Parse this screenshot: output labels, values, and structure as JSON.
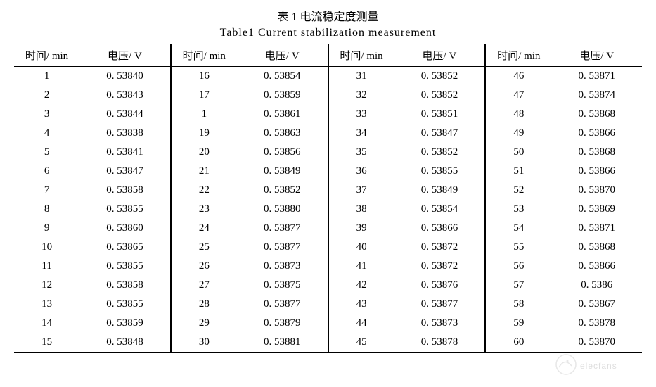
{
  "title_zh": "表 1   电流稳定度测量",
  "title_en": "Table1   Current stabilization measurement",
  "header_time": "时间/ min",
  "header_volt": "电压/ V",
  "colors": {
    "text": "#000000",
    "background": "#ffffff",
    "border": "#000000",
    "watermark": "#888888"
  },
  "blocks": [
    {
      "rows": [
        {
          "t": "1",
          "v": "0. 53840"
        },
        {
          "t": "2",
          "v": "0. 53843"
        },
        {
          "t": "3",
          "v": "0. 53844"
        },
        {
          "t": "4",
          "v": "0. 53838"
        },
        {
          "t": "5",
          "v": "0. 53841"
        },
        {
          "t": "6",
          "v": "0. 53847"
        },
        {
          "t": "7",
          "v": "0. 53858"
        },
        {
          "t": "8",
          "v": "0. 53855"
        },
        {
          "t": "9",
          "v": "0. 53860"
        },
        {
          "t": "10",
          "v": "0. 53865"
        },
        {
          "t": "11",
          "v": "0. 53855"
        },
        {
          "t": "12",
          "v": "0. 53858"
        },
        {
          "t": "13",
          "v": "0. 53855"
        },
        {
          "t": "14",
          "v": "0. 53859"
        },
        {
          "t": "15",
          "v": "0. 53848"
        }
      ]
    },
    {
      "rows": [
        {
          "t": "16",
          "v": "0. 53854"
        },
        {
          "t": "17",
          "v": "0. 53859"
        },
        {
          "t": "1",
          "v": "0. 53861"
        },
        {
          "t": "19",
          "v": "0. 53863"
        },
        {
          "t": "20",
          "v": "0. 53856"
        },
        {
          "t": "21",
          "v": "0. 53849"
        },
        {
          "t": "22",
          "v": "0. 53852"
        },
        {
          "t": "23",
          "v": "0. 53880"
        },
        {
          "t": "24",
          "v": "0. 53877"
        },
        {
          "t": "25",
          "v": "0. 53877"
        },
        {
          "t": "26",
          "v": "0. 53873"
        },
        {
          "t": "27",
          "v": "0. 53875"
        },
        {
          "t": "28",
          "v": "0. 53877"
        },
        {
          "t": "29",
          "v": "0. 53879"
        },
        {
          "t": "30",
          "v": "0. 53881"
        }
      ]
    },
    {
      "rows": [
        {
          "t": "31",
          "v": "0. 53852"
        },
        {
          "t": "32",
          "v": "0. 53852"
        },
        {
          "t": "33",
          "v": "0. 53851"
        },
        {
          "t": "34",
          "v": "0. 53847"
        },
        {
          "t": "35",
          "v": "0. 53852"
        },
        {
          "t": "36",
          "v": "0. 53855"
        },
        {
          "t": "37",
          "v": "0. 53849"
        },
        {
          "t": "38",
          "v": "0. 53854"
        },
        {
          "t": "39",
          "v": "0. 53866"
        },
        {
          "t": "40",
          "v": "0. 53872"
        },
        {
          "t": "41",
          "v": "0. 53872"
        },
        {
          "t": "42",
          "v": "0. 53876"
        },
        {
          "t": "43",
          "v": "0. 53877"
        },
        {
          "t": "44",
          "v": "0. 53873"
        },
        {
          "t": "45",
          "v": "0. 53878"
        }
      ]
    },
    {
      "rows": [
        {
          "t": "46",
          "v": "0. 53871"
        },
        {
          "t": "47",
          "v": "0. 53874"
        },
        {
          "t": "48",
          "v": "0. 53868"
        },
        {
          "t": "49",
          "v": "0. 53866"
        },
        {
          "t": "50",
          "v": "0. 53868"
        },
        {
          "t": "51",
          "v": "0. 53866"
        },
        {
          "t": "52",
          "v": "0. 53870"
        },
        {
          "t": "53",
          "v": "0. 53869"
        },
        {
          "t": "54",
          "v": "0. 53871"
        },
        {
          "t": "55",
          "v": "0. 53868"
        },
        {
          "t": "56",
          "v": "0. 53866"
        },
        {
          "t": "57",
          "v": "0. 5386"
        },
        {
          "t": "58",
          "v": "0. 53867"
        },
        {
          "t": "59",
          "v": "0. 53878"
        },
        {
          "t": "60",
          "v": "0. 53870"
        }
      ]
    }
  ],
  "watermark_text": "elecfans"
}
